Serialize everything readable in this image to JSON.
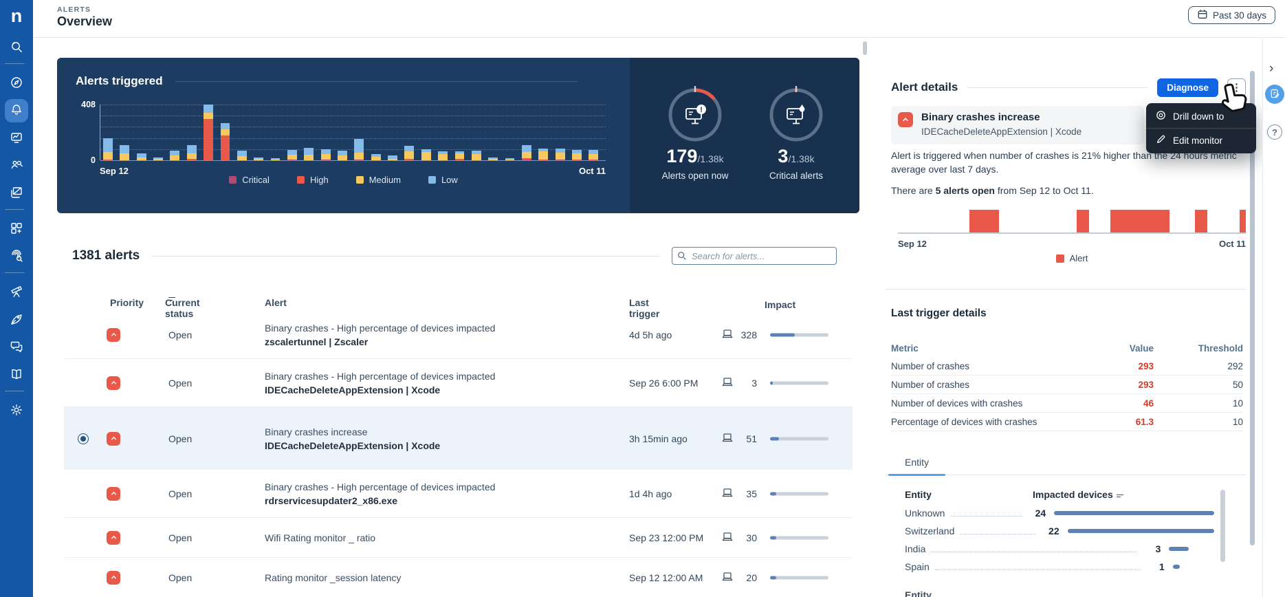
{
  "header": {
    "eyebrow": "ALERTS",
    "title": "Overview",
    "time_range": "Past 30 days"
  },
  "sidebar": {
    "items": [
      {
        "name": "ai-search",
        "icon": "sparkle-search-icon"
      },
      {
        "divider": true
      },
      {
        "name": "discover",
        "icon": "compass-icon"
      },
      {
        "name": "alerts",
        "icon": "bell-icon",
        "active": true
      },
      {
        "name": "monitoring",
        "icon": "monitor-trend-icon"
      },
      {
        "name": "workforce",
        "icon": "people-search-icon"
      },
      {
        "name": "campaigns",
        "icon": "layers-icon"
      },
      {
        "divider": true
      },
      {
        "name": "applications",
        "icon": "apps-grid-icon"
      },
      {
        "name": "investigations",
        "icon": "fingerprint-search-icon"
      },
      {
        "divider": true
      },
      {
        "name": "discovery",
        "icon": "telescope-icon"
      },
      {
        "name": "automation",
        "icon": "rocket-icon"
      },
      {
        "name": "engage",
        "icon": "chat-icon"
      },
      {
        "name": "library",
        "icon": "book-icon"
      },
      {
        "divider": true
      },
      {
        "name": "settings",
        "icon": "gear-icon"
      }
    ]
  },
  "overview": {
    "chart": {
      "type": "bar",
      "title": "Alerts triggered",
      "y_max_label": "408",
      "y_min_label": "0",
      "y_axis_max": 408,
      "x_start": "Sep 12",
      "x_end": "Oct 11",
      "legend": [
        {
          "label": "Critical",
          "color": "#b04a73"
        },
        {
          "label": "High",
          "color": "#e8594a"
        },
        {
          "label": "Medium",
          "color": "#f7c85e"
        },
        {
          "label": "Low",
          "color": "#85bbe8"
        }
      ],
      "bars": [
        [
          0,
          3,
          55,
          100
        ],
        [
          0,
          0,
          50,
          60
        ],
        [
          0,
          0,
          18,
          30
        ],
        [
          0,
          0,
          8,
          14
        ],
        [
          0,
          0,
          35,
          35
        ],
        [
          0,
          8,
          40,
          62
        ],
        [
          0,
          300,
          50,
          58
        ],
        [
          0,
          180,
          45,
          47
        ],
        [
          0,
          0,
          28,
          45
        ],
        [
          0,
          0,
          8,
          10
        ],
        [
          0,
          0,
          2,
          8
        ],
        [
          3,
          0,
          35,
          35
        ],
        [
          0,
          0,
          42,
          48
        ],
        [
          4,
          0,
          38,
          36
        ],
        [
          0,
          0,
          35,
          38
        ],
        [
          2,
          0,
          50,
          100
        ],
        [
          0,
          0,
          25,
          20
        ],
        [
          0,
          0,
          10,
          23
        ],
        [
          0,
          10,
          58,
          36
        ],
        [
          0,
          0,
          60,
          22
        ],
        [
          0,
          0,
          45,
          20
        ],
        [
          0,
          8,
          40,
          20
        ],
        [
          0,
          0,
          45,
          24
        ],
        [
          0,
          0,
          10,
          8
        ],
        [
          0,
          0,
          2,
          5
        ],
        [
          2,
          3,
          45,
          50
        ],
        [
          0,
          3,
          58,
          22
        ],
        [
          2,
          0,
          50,
          28
        ],
        [
          0,
          5,
          45,
          25
        ],
        [
          0,
          2,
          40,
          28
        ]
      ]
    },
    "gauges": [
      {
        "value": "179",
        "total": "/1.38k",
        "label": "Alerts open now",
        "fraction": 0.13,
        "icon": "monitor-alert-icon"
      },
      {
        "value": "3",
        "total": "/1.38k",
        "label": "Critical alerts",
        "fraction": 0.0,
        "icon": "monitor-flame-icon"
      }
    ]
  },
  "alerts": {
    "heading": "1381 alerts",
    "search_placeholder": "Search for alerts...",
    "columns": {
      "priority": "Priority",
      "status": "Current status",
      "alert": "Alert",
      "trigger": "Last trigger",
      "impact": "Impact"
    },
    "rows": [
      {
        "selected": false,
        "status": "Open",
        "title": "Binary crashes - High percentage of devices impacted",
        "subtitle": "zscalertunnel | Zscaler",
        "trigger": "4d 5h ago",
        "devices": "328",
        "impact_pct": 42
      },
      {
        "selected": false,
        "status": "Open",
        "title": "Binary crashes - High percentage of devices impacted",
        "subtitle": "IDECacheDeleteAppExtension | Xcode",
        "trigger": "Sep 26 6:00 PM",
        "devices": "3",
        "impact_pct": 5
      },
      {
        "selected": true,
        "status": "Open",
        "title": "Binary crashes increase",
        "subtitle": "IDECacheDeleteAppExtension | Xcode",
        "trigger": "3h 15min ago",
        "devices": "51",
        "impact_pct": 15
      },
      {
        "selected": false,
        "status": "Open",
        "title": "Binary crashes - High percentage of devices impacted",
        "subtitle": "rdrservicesupdater2_x86.exe",
        "trigger": "1d 4h ago",
        "devices": "35",
        "impact_pct": 11
      },
      {
        "selected": false,
        "status": "Open",
        "title": "Wifi Rating monitor _ ratio",
        "subtitle": null,
        "trigger": "Sep 23 12:00 PM",
        "devices": "30",
        "impact_pct": 10
      },
      {
        "selected": false,
        "status": "Open",
        "title": "Rating monitor _session latency",
        "subtitle": null,
        "trigger": "Sep 12 12:00 AM",
        "devices": "20",
        "impact_pct": 10
      }
    ]
  },
  "details": {
    "heading": "Alert details",
    "diagnose_label": "Diagnose",
    "menu": {
      "items": [
        {
          "label": "Drill down to",
          "icon": "drill-down-icon"
        },
        {
          "label": "Edit monitor",
          "icon": "edit-pencil-icon"
        }
      ]
    },
    "alert": {
      "title": "Binary crashes increase",
      "subtitle": "IDECacheDeleteAppExtension | Xcode"
    },
    "description": "Alert is triggered when number of crashes is 21% higher than the 24 hours metric average over last 7 days.",
    "summary_prefix": "There are ",
    "summary_bold": "5 alerts open",
    "summary_suffix": " from Sep 12 to Oct 11.",
    "timeline": {
      "type": "gantt",
      "x_start": "Sep 12",
      "x_end": "Oct 11",
      "legend_label": "Alert",
      "color": "#e8594a",
      "blocks": [
        {
          "from": 20.5,
          "to": 29
        },
        {
          "from": 51.3,
          "to": 55
        },
        {
          "from": 61,
          "to": 78
        },
        {
          "from": 85.3,
          "to": 89
        },
        {
          "from": 98.2,
          "to": 100
        }
      ]
    },
    "last_trigger": {
      "heading": "Last trigger details",
      "columns": {
        "metric": "Metric",
        "value": "Value",
        "threshold": "Threshold"
      },
      "rows": [
        {
          "metric": "Number of crashes",
          "value": "293",
          "threshold": "292"
        },
        {
          "metric": "Number of crashes",
          "value": "293",
          "threshold": "50"
        },
        {
          "metric": "Number of devices with crashes",
          "value": "46",
          "threshold": "10"
        },
        {
          "metric": "Percentage of devices with crashes",
          "value": "61.3",
          "threshold": "10"
        }
      ]
    },
    "tab_label": "Entity",
    "entity_table": {
      "type": "bar",
      "col_entity": "Entity",
      "col_impacted": "Impacted devices",
      "rows": [
        {
          "name": "Unknown",
          "value": 24
        },
        {
          "name": "Switzerland",
          "value": 22
        },
        {
          "name": "India",
          "value": 3
        },
        {
          "name": "Spain",
          "value": 1
        }
      ],
      "bottom_clipped_label": "Entity"
    }
  },
  "colors": {
    "accent_blue": "#1066e2",
    "impact_bar": "#5b82b3",
    "value_red": "#d13b28",
    "sidebar_blue": "#1357a5",
    "card_navy": "#1d3c61"
  }
}
